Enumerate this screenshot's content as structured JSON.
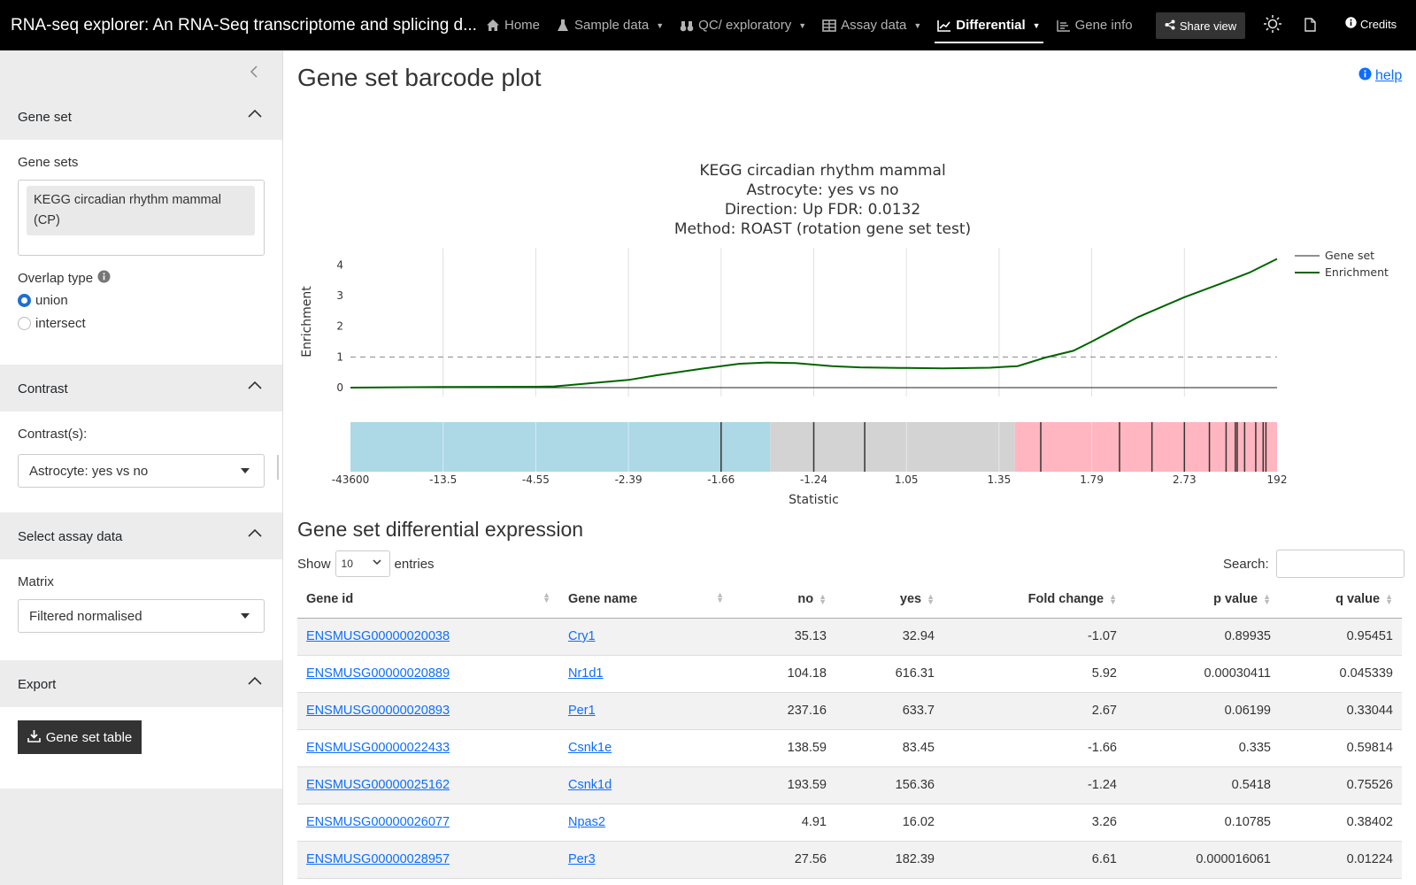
{
  "app": {
    "title": "RNA-seq explorer: An RNA-Seq transcriptome and splicing d...",
    "nav": [
      "Home",
      "Sample data",
      "QC/ exploratory",
      "Assay data",
      "Differential",
      "Gene info"
    ],
    "share_label": "Share view",
    "credits_label": "Credits"
  },
  "sidebar": {
    "gene_set_header": "Gene set",
    "gene_sets_label": "Gene sets",
    "gene_set_selected": "KEGG circadian rhythm mammal (CP)",
    "overlap_label": "Overlap type",
    "overlap_options": [
      "union",
      "intersect"
    ],
    "overlap_selected": "union",
    "contrast_header": "Contrast",
    "contrast_label": "Contrast(s):",
    "contrast_value": "Astrocyte: yes vs no",
    "assay_header": "Select assay data",
    "matrix_label": "Matrix",
    "matrix_value": "Filtered normalised",
    "export_header": "Export",
    "export_button": "Gene set table"
  },
  "main": {
    "title": "Gene set barcode plot",
    "help_label": "help",
    "table_title": "Gene set differential expression",
    "show_label": "Show",
    "show_value": "10",
    "entries_label": "entries",
    "search_label": "Search:"
  },
  "chart_data": {
    "type": "line",
    "title": [
      "KEGG circadian rhythm mammal",
      "Astrocyte: yes vs no",
      "Direction: Up FDR: 0.0132",
      "Method: ROAST (rotation gene set test)"
    ],
    "ylabel": "Enrichment",
    "xlabel": "Statistic",
    "ylim": [
      0,
      4.3
    ],
    "yticks": [
      0,
      1,
      2,
      3,
      4
    ],
    "xtick_labels": [
      "-43600",
      "-13.5",
      "-4.55",
      "-2.39",
      "-1.66",
      "-1.24",
      "1.05",
      "1.35",
      "1.79",
      "2.73",
      "192"
    ],
    "legend": [
      "Gene set",
      "Enrichment"
    ],
    "legend_position": "top-right",
    "reference_line": 1,
    "series": [
      {
        "name": "Enrichment",
        "color": "#006400",
        "x": [
          0,
          0.1,
          0.2,
          0.22,
          0.3,
          0.33,
          0.38,
          0.42,
          0.45,
          0.48,
          0.52,
          0.55,
          0.6,
          0.64,
          0.69,
          0.72,
          0.75,
          0.78,
          0.8,
          0.85,
          0.9,
          0.94,
          0.97,
          1.0
        ],
        "y": [
          0,
          0.02,
          0.03,
          0.04,
          0.25,
          0.4,
          0.62,
          0.78,
          0.82,
          0.8,
          0.7,
          0.66,
          0.64,
          0.63,
          0.65,
          0.7,
          0.98,
          1.2,
          1.5,
          2.3,
          2.95,
          3.4,
          3.75,
          4.2
        ]
      }
    ],
    "barcode": {
      "regions": [
        {
          "from": 0,
          "to": 0.453,
          "color": "#add8e6"
        },
        {
          "from": 0.453,
          "to": 0.717,
          "color": "#d3d3d3"
        },
        {
          "from": 0.717,
          "to": 1.0,
          "color": "#ffb6c1"
        }
      ],
      "gene_positions": [
        0.4,
        0.5,
        0.555,
        0.745,
        0.83,
        0.865,
        0.9,
        0.927,
        0.945,
        0.955,
        0.957,
        0.965,
        0.977,
        0.985,
        0.988
      ]
    }
  },
  "table": {
    "columns": [
      "Gene id",
      "Gene name",
      "no",
      "yes",
      "Fold change",
      "p value",
      "q value"
    ],
    "rows": [
      {
        "gene_id": "ENSMUSG00000020038",
        "gene_name": "Cry1",
        "no": "35.13",
        "yes": "32.94",
        "fc": "-1.07",
        "p": "0.89935",
        "q": "0.95451"
      },
      {
        "gene_id": "ENSMUSG00000020889",
        "gene_name": "Nr1d1",
        "no": "104.18",
        "yes": "616.31",
        "fc": "5.92",
        "p": "0.00030411",
        "q": "0.045339"
      },
      {
        "gene_id": "ENSMUSG00000020893",
        "gene_name": "Per1",
        "no": "237.16",
        "yes": "633.7",
        "fc": "2.67",
        "p": "0.06199",
        "q": "0.33044"
      },
      {
        "gene_id": "ENSMUSG00000022433",
        "gene_name": "Csnk1e",
        "no": "138.59",
        "yes": "83.45",
        "fc": "-1.66",
        "p": "0.335",
        "q": "0.59814"
      },
      {
        "gene_id": "ENSMUSG00000025162",
        "gene_name": "Csnk1d",
        "no": "193.59",
        "yes": "156.36",
        "fc": "-1.24",
        "p": "0.5418",
        "q": "0.75526"
      },
      {
        "gene_id": "ENSMUSG00000026077",
        "gene_name": "Npas2",
        "no": "4.91",
        "yes": "16.02",
        "fc": "3.26",
        "p": "0.10785",
        "q": "0.38402"
      },
      {
        "gene_id": "ENSMUSG00000028957",
        "gene_name": "Per3",
        "no": "27.56",
        "yes": "182.39",
        "fc": "6.61",
        "p": "0.000016061",
        "q": "0.01224"
      }
    ]
  }
}
